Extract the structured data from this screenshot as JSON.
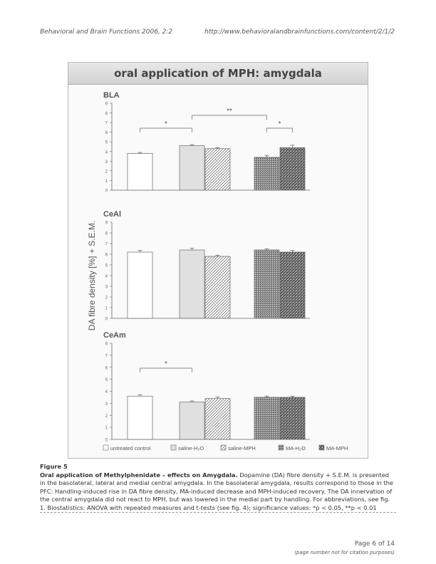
{
  "header": {
    "journal": "Behavioral and Brain Functions 2006, 2:2",
    "url": "http://www.behavioralandbrainfunctions.com/content/2/1/2"
  },
  "figure": {
    "banner": "oral application of MPH: amygdala",
    "ylabel": "DA fibre density [%] + S.E.M.",
    "legend": [
      "untreated control",
      "saline-H₂O",
      "saline-MPH",
      "MA-H₂O",
      "MA-MPH"
    ]
  },
  "chart_data": [
    {
      "type": "bar",
      "title": "BLA",
      "categories": [
        "untreated control",
        "saline-H₂O",
        "saline-MPH",
        "MA-H₂O",
        "MA-MPH"
      ],
      "values": [
        3.8,
        4.6,
        4.3,
        3.4,
        4.4
      ],
      "errors": [
        0.1,
        0.12,
        0.1,
        0.2,
        0.25
      ],
      "ylim": [
        0,
        9
      ],
      "yticks": [
        "0",
        "1",
        "2",
        "3",
        "4",
        "5",
        "6",
        "7",
        "8",
        "9"
      ],
      "annotations": [
        {
          "label": "*",
          "from": 0,
          "to": 1
        },
        {
          "label": "**",
          "from": 1,
          "to": 3
        },
        {
          "label": "*",
          "from": 3,
          "to": 4
        }
      ]
    },
    {
      "type": "bar",
      "title": "CeAl",
      "categories": [
        "untreated control",
        "saline-H₂O",
        "saline-MPH",
        "MA-H₂O",
        "MA-MPH"
      ],
      "values": [
        6.2,
        6.4,
        5.8,
        6.4,
        6.2
      ],
      "errors": [
        0.15,
        0.15,
        0.1,
        0.1,
        0.15
      ],
      "ylim": [
        0,
        9
      ],
      "yticks": [
        "0",
        "1",
        "2",
        "3",
        "4",
        "5",
        "6",
        "7",
        "8",
        "9"
      ],
      "annotations": []
    },
    {
      "type": "bar",
      "title": "CeAm",
      "categories": [
        "untreated control",
        "saline-H₂O",
        "saline-MPH",
        "MA-H₂O",
        "MA-MPH"
      ],
      "values": [
        3.6,
        3.1,
        3.4,
        3.5,
        3.5
      ],
      "errors": [
        0.1,
        0.1,
        0.12,
        0.1,
        0.1
      ],
      "ylim": [
        0,
        8
      ],
      "yticks": [
        "0",
        "1",
        "2",
        "3",
        "4",
        "5",
        "6",
        "7",
        "8"
      ],
      "annotations": [
        {
          "label": "*",
          "from": 0,
          "to": 1
        }
      ]
    }
  ],
  "caption": {
    "figure_label": "Figure 5",
    "title": "Oral application of Methylphenidate – effects on Amygdala.",
    "text": "Dopamine (DA) fibre density + S.E.M. is presented in the basolateral, lateral and medial central amygdala. In the basolateral amygdala, results correspond to those in the PFC: Handling-induced rise in DA fibre density, MA-induced decrease and MPH-induced recovery. The DA innervation of the central amygdala did not react to MPH, but was lowered in the medial part by handling. For abbreviations, see fig. 1. Biostatistics: ANOVA with repeated measures and t-tests (see fig. 4); significance values: *p < 0.05, **p < 0.01"
  },
  "footer": {
    "page": "Page 6 of 14",
    "note": "(page number not for citation purposes)"
  },
  "colors": {
    "axis": "#555555",
    "bar_outline": "#666666",
    "bar_untreated": "#ffffff",
    "bar_saline_h2o": "#e0e0e0",
    "banner_text": "#444444"
  }
}
